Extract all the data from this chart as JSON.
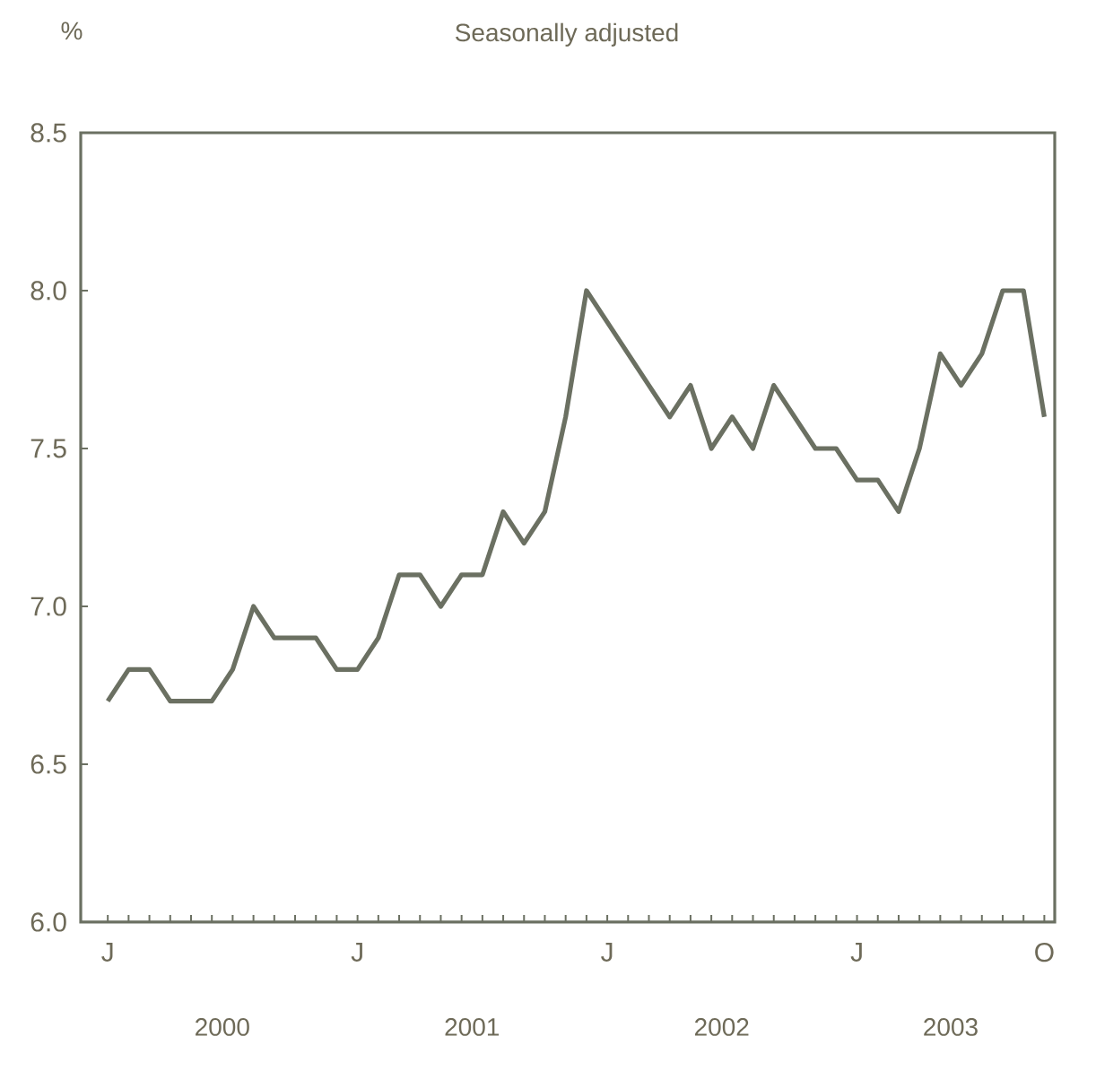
{
  "chart_data": {
    "type": "line",
    "title": "Seasonally adjusted",
    "ylabel": "%",
    "categories": [
      "J",
      null,
      null,
      null,
      null,
      null,
      null,
      null,
      null,
      null,
      null,
      null,
      "J",
      null,
      null,
      null,
      null,
      null,
      null,
      null,
      null,
      null,
      null,
      null,
      "J",
      null,
      null,
      null,
      null,
      null,
      null,
      null,
      null,
      null,
      null,
      null,
      "J",
      null,
      null,
      null,
      null,
      null,
      null,
      null,
      null,
      "O"
    ],
    "values": [
      6.7,
      6.8,
      6.8,
      6.7,
      6.7,
      6.7,
      6.8,
      7.0,
      6.9,
      6.9,
      6.9,
      6.8,
      6.8,
      6.9,
      7.1,
      7.1,
      7.0,
      7.1,
      7.1,
      7.3,
      7.2,
      7.3,
      7.6,
      8.0,
      7.9,
      7.8,
      7.7,
      7.6,
      7.7,
      7.5,
      7.6,
      7.5,
      7.7,
      7.6,
      7.5,
      7.5,
      7.4,
      7.4,
      7.3,
      7.5,
      7.8,
      7.7,
      7.8,
      8.0,
      8.0,
      7.6
    ],
    "color": "#6b7062",
    "ylim": [
      6.0,
      8.5
    ],
    "yticks": [
      {
        "value": 6.0,
        "label": "6.0"
      },
      {
        "value": 6.5,
        "label": "6.5"
      },
      {
        "value": 7.0,
        "label": "7.0"
      },
      {
        "value": 7.5,
        "label": "7.5"
      },
      {
        "value": 8.0,
        "label": "8.0"
      },
      {
        "value": 8.5,
        "label": "8.5"
      }
    ],
    "annotations": [
      "2000",
      "2001",
      "2002",
      "2003"
    ],
    "line_style": "solid",
    "marker": "none",
    "grid": false
  }
}
